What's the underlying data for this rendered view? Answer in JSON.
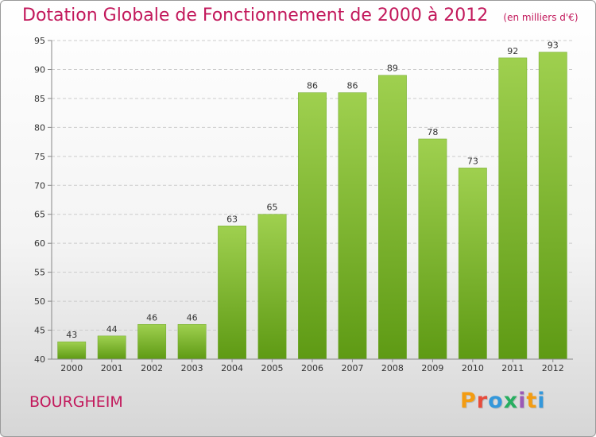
{
  "header": {
    "title": "Dotation Globale de Fonctionnement de 2000 à 2012",
    "unit": "(en milliers d'€)"
  },
  "footer": {
    "commune": "BOURGHEIM",
    "brand": "Proxiti",
    "brand_colors": [
      "#f39c12",
      "#e74c3c",
      "#3498db",
      "#27ae60",
      "#9b59b6",
      "#f39c12",
      "#3498db"
    ]
  },
  "colors": {
    "bar_top": "#9fd04f",
    "bar_bottom": "#5e9a14",
    "title": "#c2185b",
    "grid": "#cccccc"
  },
  "chart_data": {
    "type": "bar",
    "categories": [
      "2000",
      "2001",
      "2002",
      "2003",
      "2004",
      "2005",
      "2006",
      "2007",
      "2008",
      "2009",
      "2010",
      "2011",
      "2012"
    ],
    "values": [
      43,
      44,
      46,
      46,
      63,
      65,
      86,
      86,
      89,
      78,
      73,
      92,
      93
    ],
    "value_labels": [
      "43",
      "44",
      "46",
      "46",
      "63",
      "65",
      "86",
      "86",
      "89",
      "78",
      "73",
      "92",
      "93"
    ],
    "title": "Dotation Globale de Fonctionnement de 2000 à 2012",
    "ylim": [
      40,
      95
    ],
    "yticks": [
      "40",
      "45",
      "50",
      "55",
      "60",
      "65",
      "70",
      "75",
      "80",
      "85",
      "90",
      "95"
    ],
    "grid": true,
    "legend": "none"
  }
}
